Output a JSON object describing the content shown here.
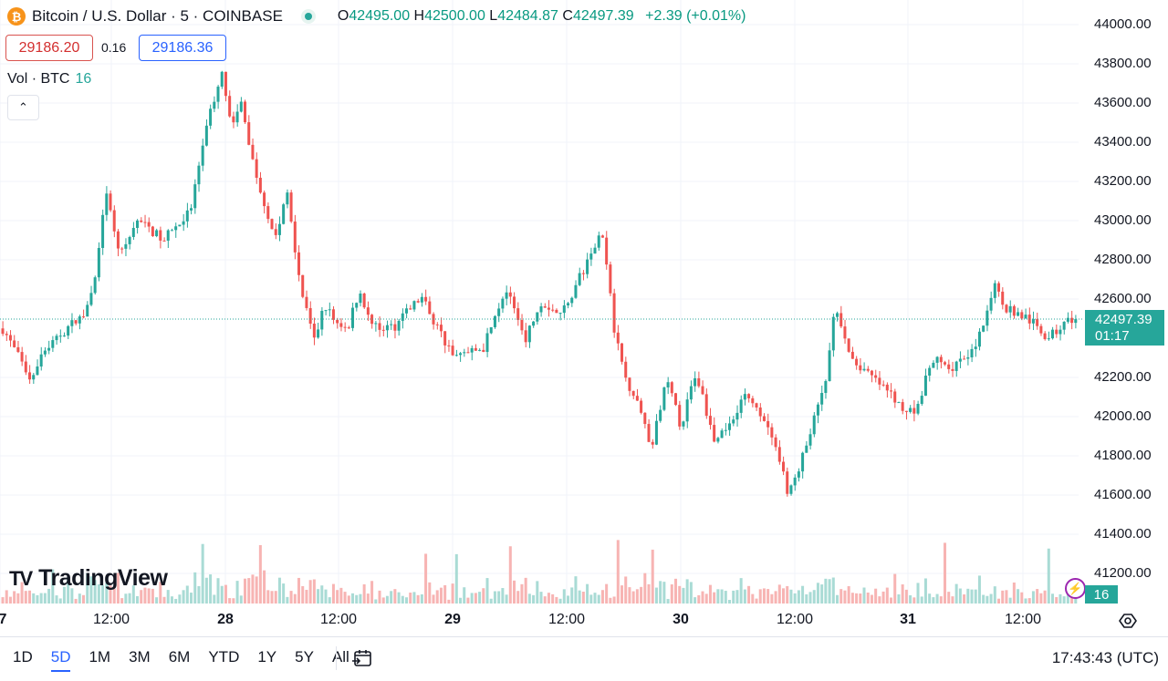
{
  "header": {
    "symbol": "Bitcoin / U.S. Dollar · 5 · COINBASE",
    "coin_badge": "₿",
    "ohlc": {
      "o_key": "O",
      "o": "42495.00",
      "h_key": "H",
      "h": "42500.00",
      "l_key": "L",
      "l": "42484.87",
      "c_key": "C",
      "c": "42497.39",
      "change": "+2.39 (+0.01%)"
    }
  },
  "trade": {
    "sell": "29186.20",
    "spread": "0.16",
    "buy": "29186.36"
  },
  "volume_legend": {
    "label": "Vol · BTC",
    "value": "16"
  },
  "collapse_glyph": "⌃",
  "logo": {
    "mark": "TV",
    "text": "TradingView"
  },
  "price_axis": [
    "44000.00",
    "43800.00",
    "43600.00",
    "43400.00",
    "43200.00",
    "43000.00",
    "42800.00",
    "42600.00",
    "42200.00",
    "42000.00",
    "41800.00",
    "41600.00",
    "41400.00",
    "41200.00"
  ],
  "last_price": {
    "price": "42497.39",
    "countdown": "01:17"
  },
  "volume_tag": "16",
  "time_axis": [
    {
      "label": "7",
      "bold": true
    },
    {
      "label": "12:00",
      "bold": false
    },
    {
      "label": "28",
      "bold": true
    },
    {
      "label": "12:00",
      "bold": false
    },
    {
      "label": "29",
      "bold": true
    },
    {
      "label": "12:00",
      "bold": false
    },
    {
      "label": "30",
      "bold": true
    },
    {
      "label": "12:00",
      "bold": false
    },
    {
      "label": "31",
      "bold": true
    },
    {
      "label": "12:00",
      "bold": false
    }
  ],
  "bottom_bar": {
    "ranges": [
      "1D",
      "5D",
      "1M",
      "3M",
      "6M",
      "YTD",
      "1Y",
      "5Y",
      "All"
    ],
    "active_range": "5D",
    "clock": "17:43:43 (UTC)"
  },
  "colors": {
    "up": "#26a69a",
    "down": "#ef5350",
    "up_vol": "#a9dbd5",
    "down_vol": "#f7b4b3",
    "grid": "#f0f3fa",
    "accent": "#2962ff"
  },
  "chart_data": {
    "type": "candlestick",
    "interval": "5",
    "exchange": "COINBASE",
    "y_axis": {
      "min": 41100,
      "max": 44100,
      "unit": "USD",
      "side": "right"
    },
    "last_price": 42497.39,
    "close_path": {
      "x_fraction_of_plot": [
        0.0,
        0.025,
        0.04,
        0.06,
        0.075,
        0.088,
        0.095,
        0.11,
        0.125,
        0.15,
        0.175,
        0.19,
        0.205,
        0.213,
        0.222,
        0.235,
        0.255,
        0.265,
        0.278,
        0.29,
        0.3,
        0.31,
        0.322,
        0.332,
        0.345,
        0.365,
        0.39,
        0.42,
        0.448,
        0.468,
        0.488,
        0.502,
        0.52,
        0.55,
        0.558,
        0.57,
        0.58,
        0.592,
        0.605,
        0.618,
        0.632,
        0.646,
        0.665,
        0.69,
        0.71,
        0.733,
        0.752,
        0.768,
        0.775,
        0.79,
        0.8,
        0.812,
        0.83,
        0.85,
        0.865,
        0.888,
        0.91,
        0.925,
        0.935,
        0.955,
        0.975,
        0.995
      ],
      "close": [
        42450,
        42200,
        42350,
        42450,
        42520,
        42760,
        43150,
        42820,
        43000,
        42900,
        43050,
        43500,
        43750,
        43450,
        43600,
        43250,
        42900,
        43150,
        42650,
        42380,
        42570,
        42480,
        42460,
        42640,
        42450,
        42460,
        42610,
        42300,
        42350,
        42650,
        42400,
        42590,
        42520,
        42840,
        42960,
        42450,
        42200,
        42080,
        41830,
        42200,
        41950,
        42230,
        41850,
        42100,
        42000,
        41600,
        41900,
        42200,
        42560,
        42300,
        42250,
        42190,
        42100,
        42000,
        42300,
        42250,
        42400,
        42700,
        42550,
        42500,
        42400,
        42497.39
      ]
    },
    "volume": {
      "unit": "BTC",
      "current": 16
    },
    "x_axis": {
      "ticks": [
        "7",
        "12:00",
        "28",
        "12:00",
        "29",
        "12:00",
        "30",
        "12:00",
        "31",
        "12:00"
      ]
    }
  }
}
